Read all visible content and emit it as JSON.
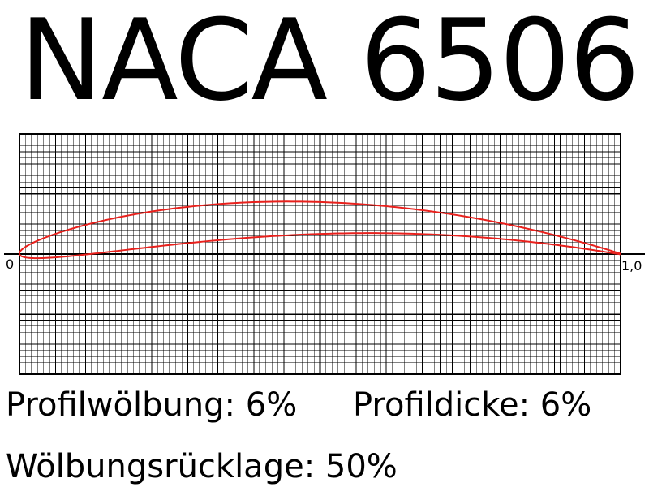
{
  "title": "NACA 6506",
  "axis": {
    "left_label": "0",
    "right_label": "1,0"
  },
  "params": {
    "camber": "Profilwölbung: 6%",
    "thickness": "Profildicke: 6%",
    "camber_position": "Wölbungsrücklage: 50%"
  },
  "chart_data": {
    "type": "line",
    "max_camber": 0.06,
    "camber_position": 0.5,
    "thickness": 0.06,
    "xlim": [
      0,
      1
    ],
    "ylim": [
      -0.2,
      0.2
    ],
    "grid": true,
    "series": [],
    "line_color": "#e8201c"
  },
  "colors": {
    "grid": "#000000",
    "profile": "#e8201c"
  }
}
